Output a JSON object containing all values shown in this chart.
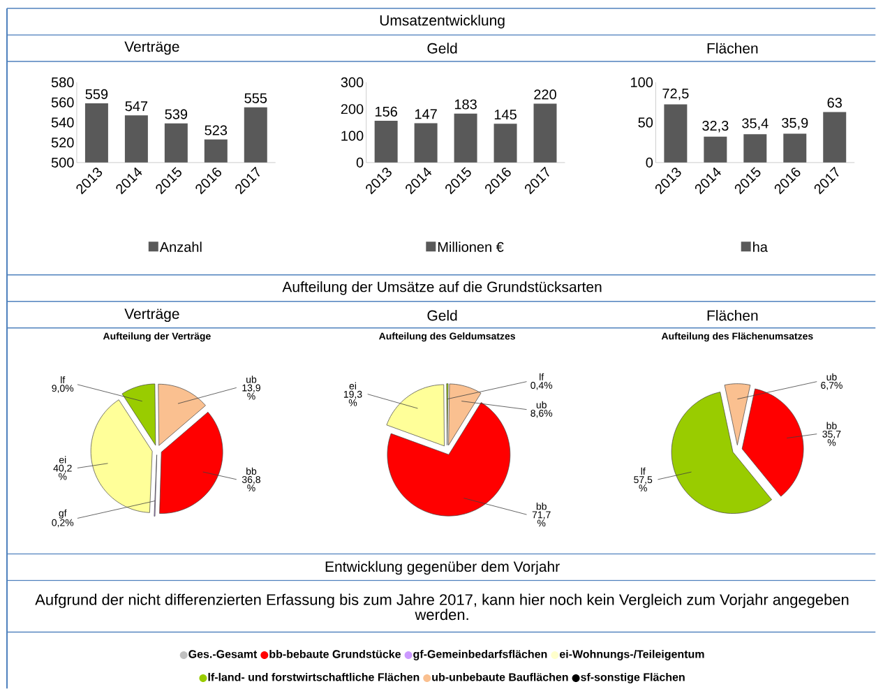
{
  "chart_data": [
    {
      "type": "other",
      "annotations": [
        "Umsatzentwicklung",
        "Aufteilung der Umsätze auf die Grundstücksarten",
        "Entwicklung gegenüber dem Vorjahr",
        "Aufgrund der nicht differenzierten Erfassung bis zum Jahre 2017, kann hier noch kein Vergleich zum Vorjahr angegeben werden."
      ],
      "categories": [
        "Ges.-Gesamt",
        "bb-bebaute Grundstücke",
        "gf-Gemeinbedarfsflächen",
        "ei-Wohnungs-/Teileigentum",
        "lf-land- und forstwirtschaftliche Flächen",
        "ub-unbebaute Bauflächen",
        "sf-sonstige Flächen"
      ],
      "colors": [
        "#c0c0c0",
        "#ff0000",
        "#cc99ff",
        "#ffffcc",
        "#99cc00",
        "#fac090",
        "#000000"
      ]
    },
    {
      "type": "bar",
      "title": "Verträge",
      "categories": [
        "2013",
        "2014",
        "2015",
        "2016",
        "2017"
      ],
      "series": [
        {
          "name": "Anzahl",
          "color": "#595959",
          "values": [
            559,
            547,
            539,
            523,
            555
          ],
          "value_labels": [
            "559",
            "547",
            "539",
            "523",
            "555"
          ]
        }
      ],
      "ylim": [
        500,
        580
      ],
      "yticks": [
        500,
        520,
        540,
        560,
        580
      ],
      "legend": "bottom"
    },
    {
      "type": "bar",
      "title": "Geld",
      "categories": [
        "2013",
        "2014",
        "2015",
        "2016",
        "2017"
      ],
      "series": [
        {
          "name": "Millionen €",
          "color": "#595959",
          "values": [
            156,
            147,
            183,
            145,
            220
          ],
          "value_labels": [
            "156",
            "147",
            "183",
            "145",
            "220"
          ]
        }
      ],
      "ylim": [
        0,
        300
      ],
      "yticks": [
        0,
        100,
        200,
        300
      ],
      "legend": "bottom"
    },
    {
      "type": "bar",
      "title": "Flächen",
      "categories": [
        "2013",
        "2014",
        "2015",
        "2016",
        "2017"
      ],
      "series": [
        {
          "name": "ha",
          "color": "#595959",
          "values": [
            72.5,
            32.3,
            35.4,
            35.9,
            63
          ],
          "value_labels": [
            "72,5",
            "32,3",
            "35,4",
            "35,9",
            "63"
          ]
        }
      ],
      "ylim": [
        0,
        100
      ],
      "yticks": [
        0,
        50,
        100
      ],
      "legend": "bottom"
    },
    {
      "type": "pie",
      "title": "Verträge",
      "subtitle": "Aufteilung der Verträge",
      "categories": [
        "lf",
        "ub",
        "bb",
        "gf",
        "ei"
      ],
      "values": [
        9.0,
        13.9,
        36.8,
        0.2,
        40.2
      ],
      "colors": [
        "#99cc00",
        "#fac090",
        "#ff0000",
        "#cc99ff",
        "#ffff99"
      ],
      "value_labels": [
        "9,0%",
        "13,9 %",
        "36,8 %",
        "0,2%",
        "40,2 %"
      ]
    },
    {
      "type": "pie",
      "title": "Geld",
      "subtitle": "Aufteilung des Geldumsatzes",
      "categories": [
        "ei",
        "lf",
        "ub",
        "bb"
      ],
      "values": [
        19.3,
        0.4,
        8.6,
        71.7
      ],
      "colors": [
        "#ffff99",
        "#99cc00",
        "#fac090",
        "#ff0000"
      ],
      "value_labels": [
        "19,3 %",
        "0,4%",
        "8,6%",
        "71,7 %"
      ]
    },
    {
      "type": "pie",
      "title": "Flächen",
      "subtitle": "Aufteilung des Flächenumsatzes",
      "categories": [
        "ub",
        "bb",
        "lf"
      ],
      "values": [
        6.7,
        35.7,
        57.5
      ],
      "colors": [
        "#fac090",
        "#ff0000",
        "#99cc00"
      ],
      "value_labels": [
        "6,7%",
        "35,7 %",
        "57,5 %"
      ]
    }
  ]
}
